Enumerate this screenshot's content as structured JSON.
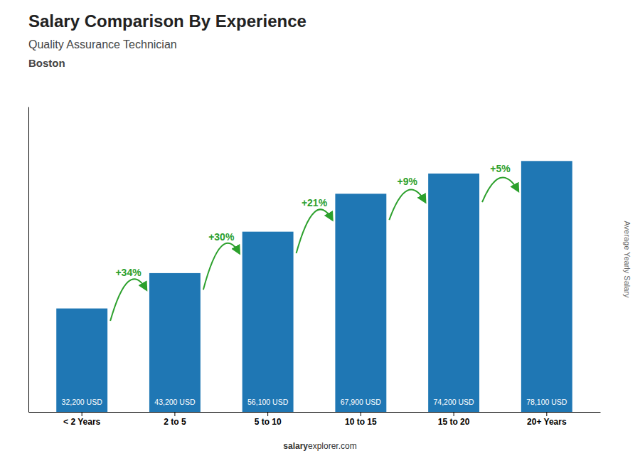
{
  "chart_data": {
    "type": "bar",
    "title": "Salary Comparison By Experience",
    "subtitle": [
      "Quality Assurance Technician",
      "Boston"
    ],
    "ylabel": "Average Yearly Salary",
    "categories": [
      "< 2 Years",
      "2 to 5",
      "5 to 10",
      "10 to 15",
      "15 to 20",
      "20+ Years"
    ],
    "values": [
      32200,
      43200,
      56100,
      67900,
      74200,
      78100
    ],
    "value_labels": [
      "32,200 USD",
      "43,200 USD",
      "56,100 USD",
      "67,900 USD",
      "74,200 USD",
      "78,100 USD"
    ],
    "data_labels": true,
    "annotations": [
      "+34%",
      "+30%",
      "+21%",
      "+9%",
      "+5%"
    ],
    "footer": [
      "salary",
      "explorer.com"
    ],
    "ylim": [
      0,
      95000
    ],
    "yticks": [],
    "tick_labels": "x",
    "grid": false
  }
}
